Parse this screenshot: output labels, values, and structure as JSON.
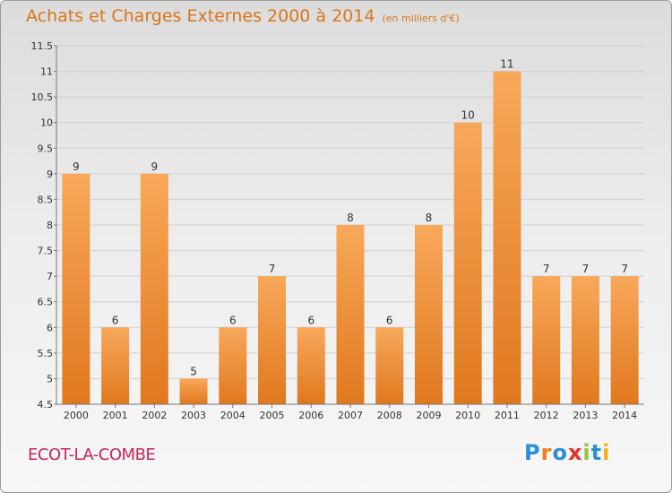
{
  "title": "Achats et Charges Externes 2000 à 2014",
  "subtitle": "(en milliers d'€)",
  "commune": "ECOT-LA-COMBE",
  "brand": "Proxiti",
  "colors": {
    "bar_top": "#f8a85a",
    "bar_bottom": "#e0781e",
    "title": "#d9751a",
    "commune": "#c8245b"
  },
  "chart_data": {
    "type": "bar",
    "title": "Achats et Charges Externes 2000 à 2014",
    "subtitle": "(en milliers d'€)",
    "xlabel": "",
    "ylabel": "",
    "categories": [
      "2000",
      "2001",
      "2002",
      "2003",
      "2004",
      "2005",
      "2006",
      "2007",
      "2008",
      "2009",
      "2010",
      "2011",
      "2012",
      "2013",
      "2014"
    ],
    "values": [
      9,
      6,
      9,
      5,
      6,
      7,
      6,
      8,
      6,
      8,
      10,
      11,
      7,
      7,
      7
    ],
    "value_labels": [
      "9",
      "6",
      "9",
      "5",
      "6",
      "7",
      "6",
      "8",
      "6",
      "8",
      "10",
      "11",
      "7",
      "7",
      "7"
    ],
    "ylim": [
      4.5,
      11.5
    ],
    "yticks": [
      4.5,
      5,
      5.5,
      6,
      6.5,
      7,
      7.5,
      8,
      8.5,
      9,
      9.5,
      10,
      10.5,
      11,
      11.5
    ],
    "ytick_labels": [
      "4.5",
      "5",
      "5.5",
      "6",
      "6.5",
      "7",
      "7.5",
      "8",
      "8.5",
      "9",
      "9.5",
      "10",
      "10.5",
      "11",
      "11.5"
    ],
    "grid": true,
    "legend": "none"
  }
}
